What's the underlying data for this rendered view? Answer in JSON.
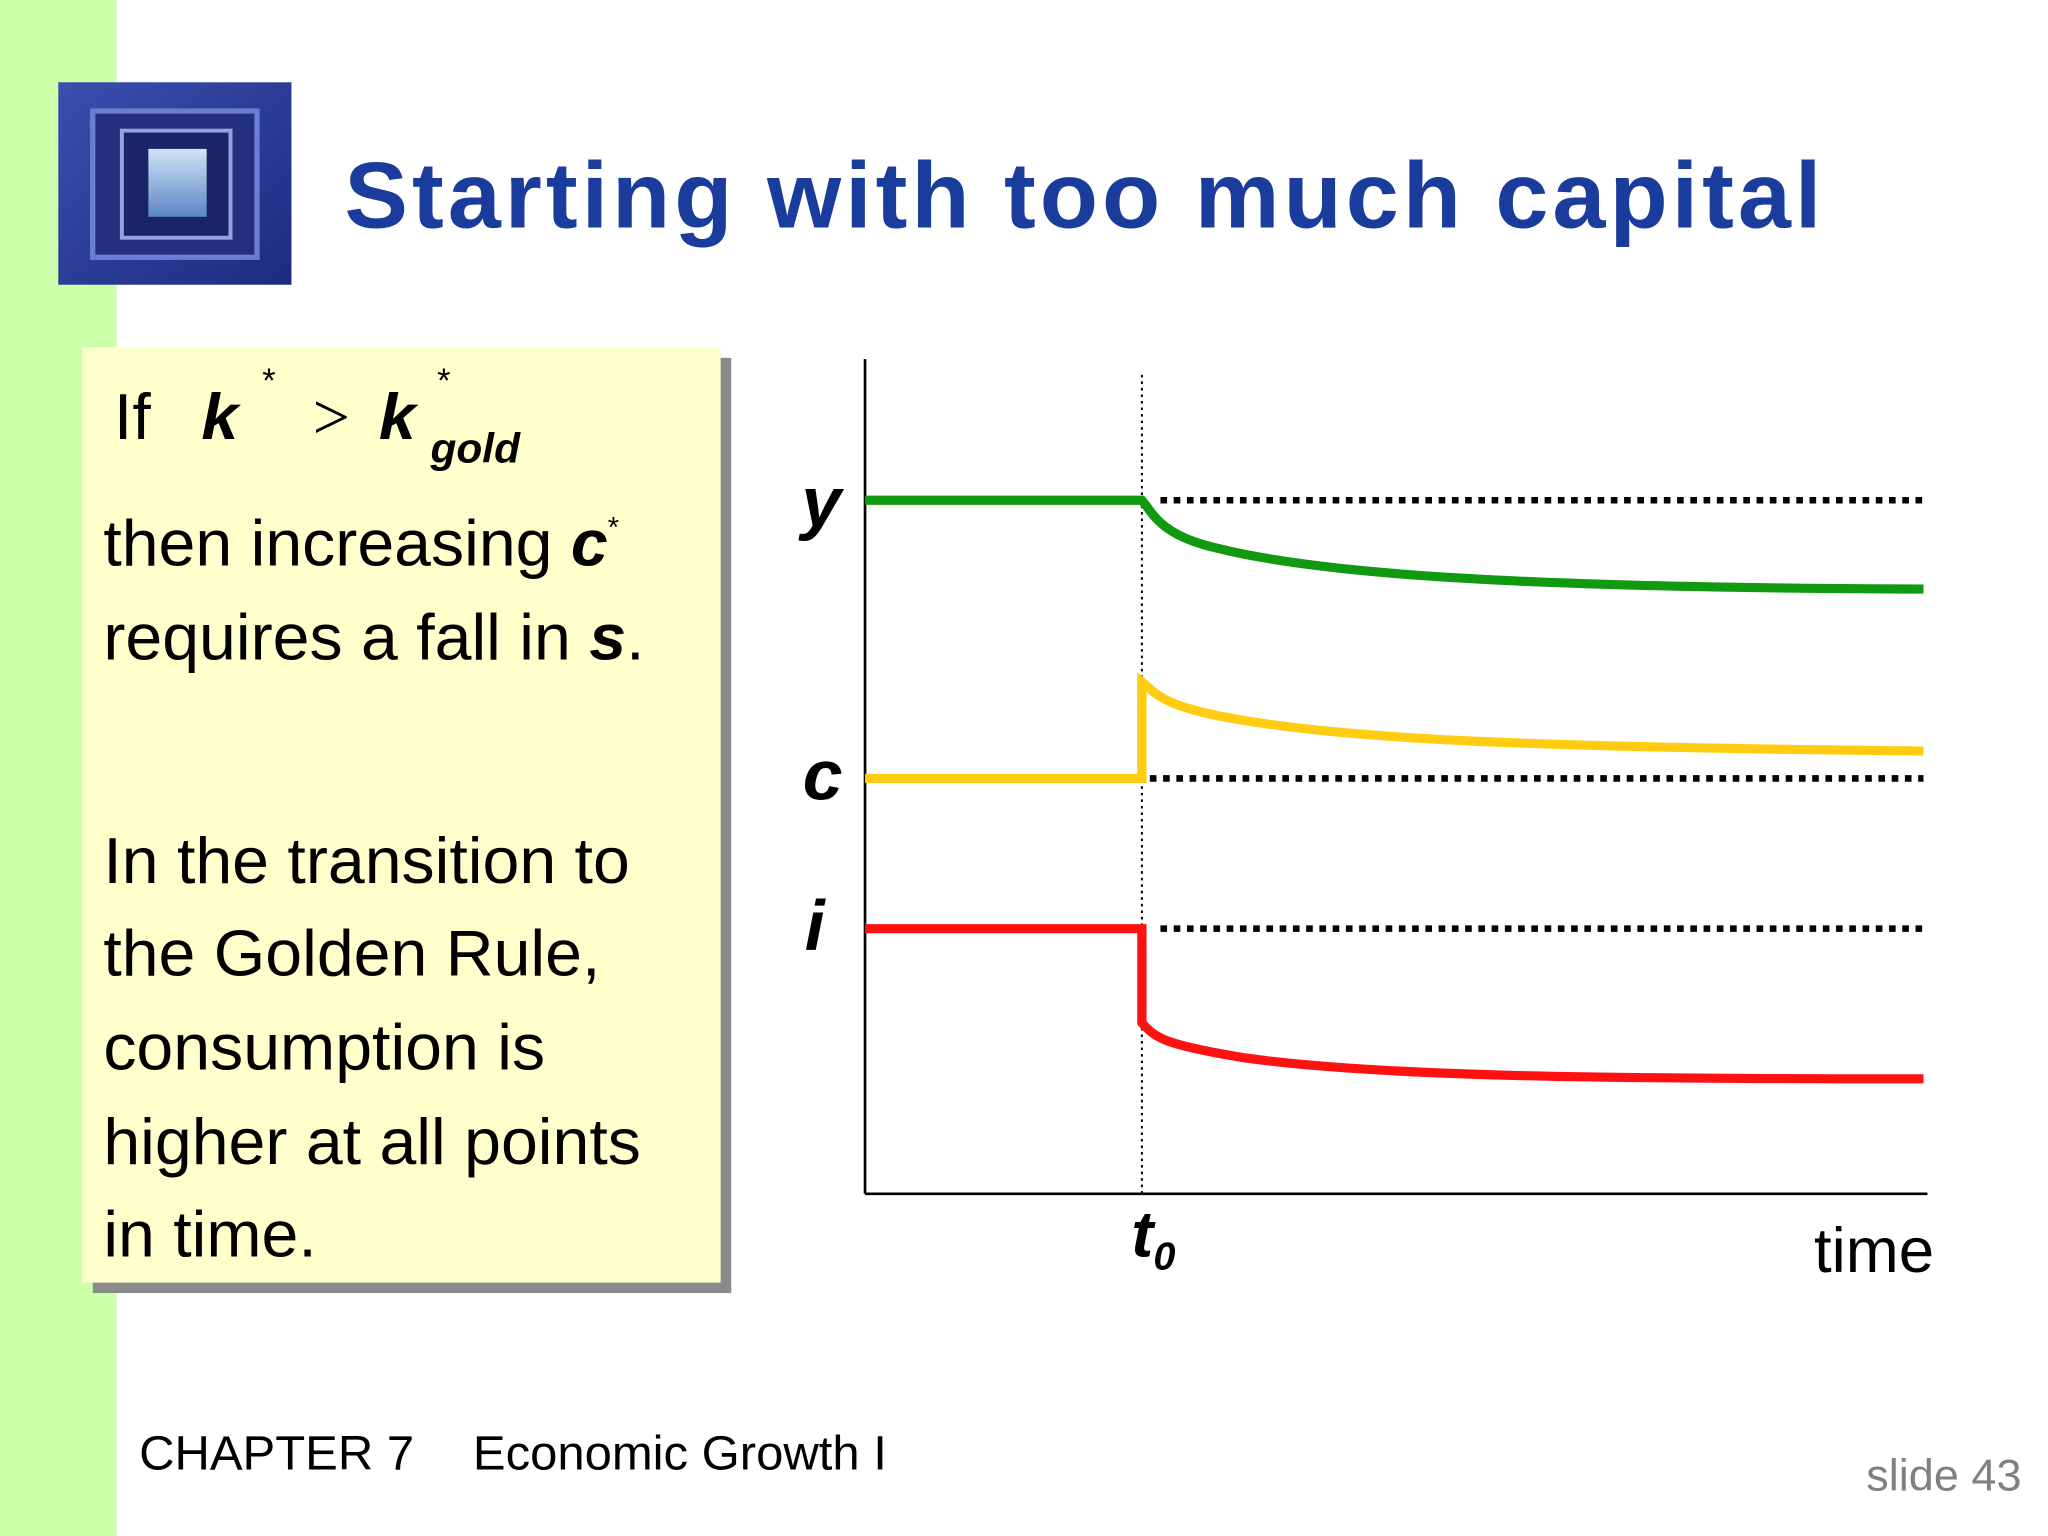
{
  "header": {
    "title": "Starting with too much capital"
  },
  "box": {
    "condition": {
      "prefix": "If",
      "lhs": "k",
      "lhs_sup": "*",
      "op": ">",
      "rhs": "k",
      "rhs_sup": "*",
      "rhs_sub": "gold"
    },
    "paragraph1": {
      "line1": "then increasing ",
      "var1": "c",
      "var1_sup": "*",
      "line2": "requires a fall in ",
      "var2": "s",
      "end": "."
    },
    "paragraph2": [
      "In the transition to",
      "the Golden Rule,",
      "consumption is",
      "higher at all points",
      "in time."
    ]
  },
  "diagram": {
    "labels": {
      "y": "y",
      "c": "c",
      "i": "i",
      "t": "t",
      "t_sub": "0",
      "x_axis": "time"
    }
  },
  "footer": {
    "chapter": "CHAPTER 7",
    "topic": "Economic Growth I",
    "slide": "slide 43"
  }
}
